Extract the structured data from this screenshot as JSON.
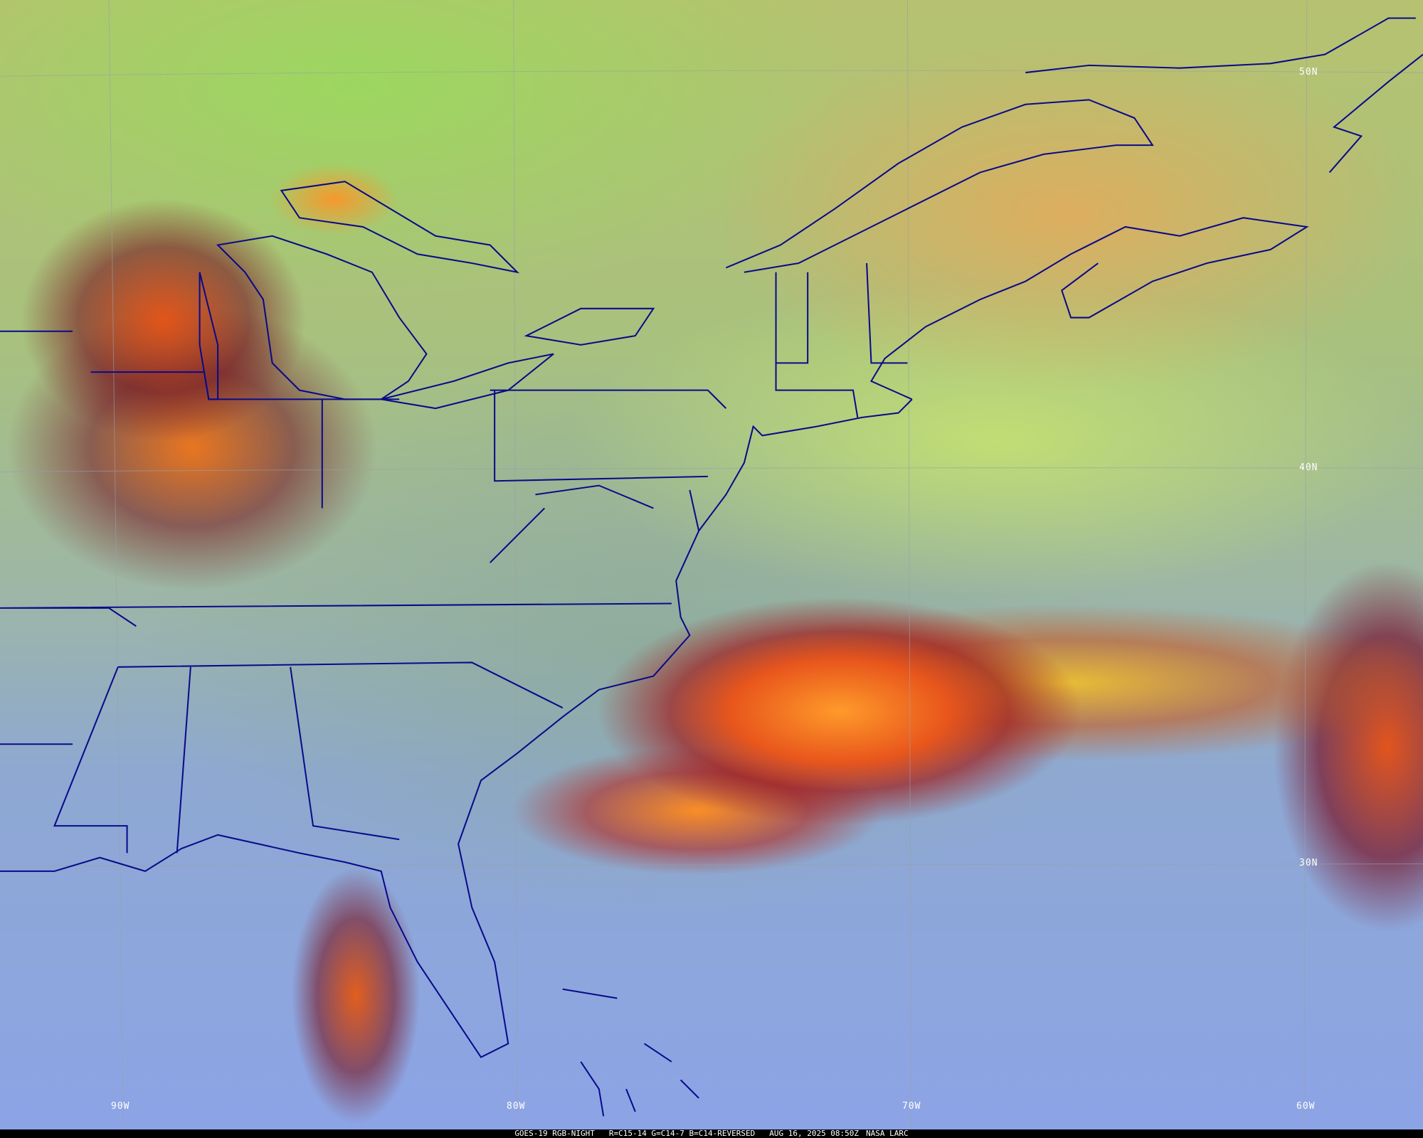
{
  "map": {
    "latitude_labels": [
      "50N",
      "40N",
      "30N"
    ],
    "longitude_labels": [
      "90W",
      "80W",
      "70W",
      "60W"
    ],
    "boundary_color": "#0a0a8a"
  },
  "caption": {
    "satellite": "GOES-19 RGB-NIGHT",
    "channels": "R=C15-14 G=C14-7 B=C14-REVERSED",
    "datetime": "AUG 16, 2025 08:50Z",
    "source": "NASA LARC"
  }
}
